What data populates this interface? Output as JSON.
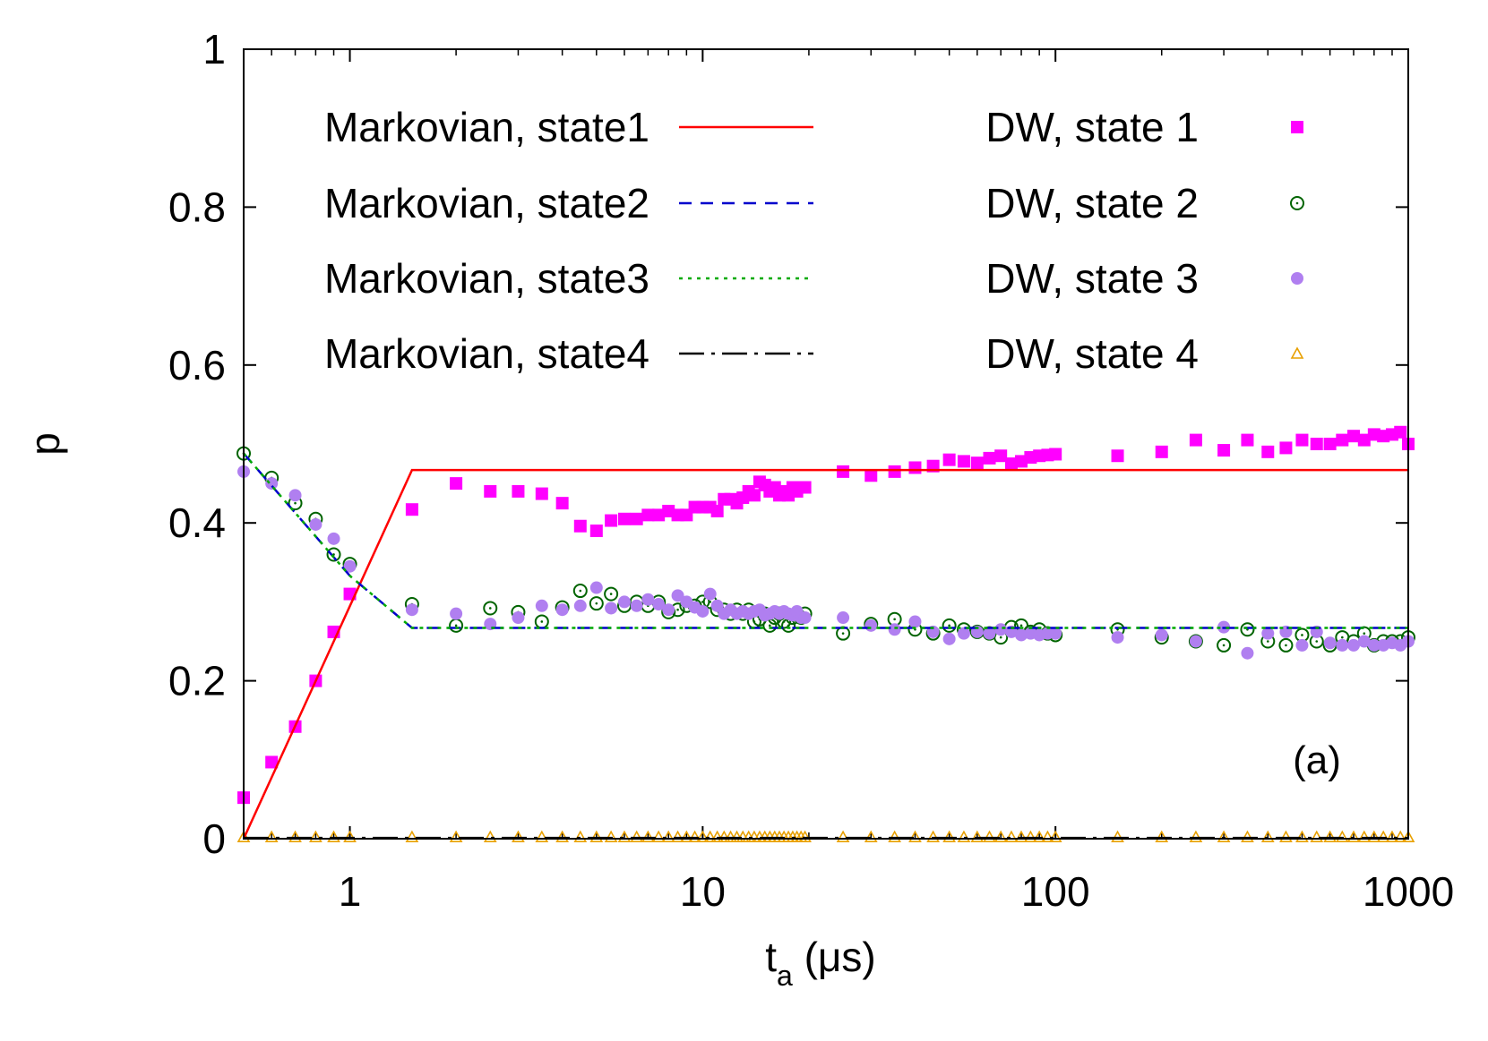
{
  "chart_data": {
    "type": "scatter",
    "title": "",
    "xlabel": "t",
    "xlabel_sub": "a",
    "xlabel_unit": " (μs)",
    "ylabel": "p",
    "xscale": "log",
    "xlim": [
      0.5,
      1000
    ],
    "ylim": [
      0,
      1
    ],
    "x_ticks": [
      1,
      10,
      100,
      1000
    ],
    "x_tick_labels": [
      "1",
      "10",
      "100",
      "1000"
    ],
    "y_ticks": [
      0,
      0.2,
      0.4,
      0.6,
      0.8,
      1
    ],
    "y_tick_labels": [
      "0",
      "0.2",
      "0.4",
      "0.6",
      "0.8",
      "1"
    ],
    "grid": false,
    "legend_position": "top",
    "annotation": "(a)",
    "series": [
      {
        "name": "Markovian, state1",
        "kind": "line",
        "color": "#ff0000",
        "dash": "solid",
        "x": [
          0.5,
          1.5,
          1000
        ],
        "y": [
          0.0,
          0.467,
          0.467
        ]
      },
      {
        "name": "Markovian, state2",
        "kind": "line",
        "color": "#0000cc",
        "dash": "dashed",
        "x": [
          0.5,
          1.0,
          1.5,
          1000
        ],
        "y": [
          0.488,
          0.333,
          0.267,
          0.267
        ]
      },
      {
        "name": "Markovian, state3",
        "kind": "line",
        "color": "#00aa00",
        "dash": "dotted",
        "x": [
          0.5,
          1.0,
          1.5,
          1000
        ],
        "y": [
          0.488,
          0.333,
          0.267,
          0.267
        ]
      },
      {
        "name": "Markovian, state4",
        "kind": "line",
        "color": "#000000",
        "dash": "dashdot",
        "x": [
          0.5,
          1000
        ],
        "y": [
          0.001,
          0.001
        ]
      },
      {
        "name": "DW, state 1",
        "kind": "marker",
        "marker": "square",
        "color": "#ff00ff",
        "x": [
          0.5,
          0.6,
          0.7,
          0.8,
          0.9,
          1.0,
          1.5,
          2,
          2.5,
          3,
          3.5,
          4,
          4.5,
          5,
          5.5,
          6,
          6.5,
          7,
          7.5,
          8,
          8.5,
          9,
          9.5,
          10,
          10.5,
          11,
          11.5,
          12,
          12.5,
          13,
          13.5,
          14,
          14.5,
          15,
          15.5,
          16,
          16.5,
          17,
          17.5,
          18,
          18.5,
          19,
          19.5,
          25,
          30,
          35,
          40,
          45,
          50,
          55,
          60,
          65,
          70,
          75,
          80,
          85,
          90,
          95,
          100,
          150,
          200,
          250,
          300,
          350,
          400,
          450,
          500,
          550,
          600,
          650,
          700,
          750,
          800,
          850,
          900,
          950,
          1000
        ],
        "y": [
          0.052,
          0.097,
          0.142,
          0.2,
          0.262,
          0.31,
          0.417,
          0.45,
          0.44,
          0.44,
          0.437,
          0.425,
          0.396,
          0.39,
          0.403,
          0.405,
          0.405,
          0.41,
          0.41,
          0.415,
          0.41,
          0.41,
          0.42,
          0.42,
          0.42,
          0.415,
          0.43,
          0.43,
          0.425,
          0.432,
          0.44,
          0.435,
          0.452,
          0.448,
          0.44,
          0.445,
          0.435,
          0.44,
          0.435,
          0.445,
          0.44,
          0.445,
          0.445,
          0.465,
          0.46,
          0.465,
          0.47,
          0.472,
          0.48,
          0.478,
          0.476,
          0.482,
          0.485,
          0.475,
          0.478,
          0.483,
          0.485,
          0.486,
          0.487,
          0.485,
          0.49,
          0.505,
          0.492,
          0.505,
          0.49,
          0.495,
          0.505,
          0.5,
          0.5,
          0.505,
          0.51,
          0.505,
          0.512,
          0.51,
          0.512,
          0.515,
          0.5
        ]
      },
      {
        "name": "DW, state 2",
        "kind": "marker",
        "marker": "circle-dot",
        "color": "#006400",
        "x": [
          0.5,
          0.6,
          0.7,
          0.8,
          0.9,
          1.0,
          1.5,
          2,
          2.5,
          3,
          3.5,
          4,
          4.5,
          5,
          5.5,
          6,
          6.5,
          7,
          7.5,
          8,
          8.5,
          9,
          9.5,
          10,
          10.5,
          11,
          11.5,
          12,
          12.5,
          13,
          13.5,
          14,
          14.5,
          15,
          15.5,
          16,
          16.5,
          17,
          17.5,
          18,
          18.5,
          19,
          19.5,
          25,
          30,
          35,
          40,
          45,
          50,
          55,
          60,
          65,
          70,
          75,
          80,
          85,
          90,
          95,
          100,
          150,
          200,
          250,
          300,
          350,
          400,
          450,
          500,
          550,
          600,
          650,
          700,
          750,
          800,
          850,
          900,
          950,
          1000
        ],
        "y": [
          0.488,
          0.457,
          0.425,
          0.405,
          0.36,
          0.348,
          0.297,
          0.27,
          0.292,
          0.287,
          0.275,
          0.293,
          0.314,
          0.298,
          0.31,
          0.295,
          0.3,
          0.295,
          0.3,
          0.287,
          0.29,
          0.295,
          0.295,
          0.3,
          0.3,
          0.29,
          0.29,
          0.285,
          0.29,
          0.285,
          0.29,
          0.275,
          0.278,
          0.285,
          0.27,
          0.28,
          0.285,
          0.275,
          0.27,
          0.28,
          0.285,
          0.28,
          0.285,
          0.26,
          0.272,
          0.278,
          0.265,
          0.26,
          0.27,
          0.265,
          0.262,
          0.26,
          0.255,
          0.268,
          0.27,
          0.262,
          0.265,
          0.26,
          0.258,
          0.265,
          0.255,
          0.25,
          0.245,
          0.265,
          0.25,
          0.245,
          0.258,
          0.25,
          0.245,
          0.255,
          0.25,
          0.26,
          0.245,
          0.25,
          0.25,
          0.25,
          0.255
        ]
      },
      {
        "name": "DW, state 3",
        "kind": "marker",
        "marker": "circle-filled",
        "color": "#b07ff0",
        "x": [
          0.5,
          0.6,
          0.7,
          0.8,
          0.9,
          1.0,
          1.5,
          2,
          2.5,
          3,
          3.5,
          4,
          4.5,
          5,
          5.5,
          6,
          6.5,
          7,
          7.5,
          8,
          8.5,
          9,
          9.5,
          10,
          10.5,
          11,
          11.5,
          12,
          12.5,
          13,
          13.5,
          14,
          14.5,
          15,
          15.5,
          16,
          16.5,
          17,
          17.5,
          18,
          18.5,
          19,
          19.5,
          25,
          30,
          35,
          40,
          45,
          50,
          55,
          60,
          65,
          70,
          75,
          80,
          85,
          90,
          95,
          100,
          150,
          200,
          250,
          300,
          350,
          400,
          450,
          500,
          550,
          600,
          650,
          700,
          750,
          800,
          850,
          900,
          950,
          1000
        ],
        "y": [
          0.465,
          0.45,
          0.435,
          0.398,
          0.38,
          0.345,
          0.29,
          0.285,
          0.272,
          0.28,
          0.295,
          0.29,
          0.295,
          0.318,
          0.292,
          0.3,
          0.295,
          0.303,
          0.297,
          0.29,
          0.308,
          0.3,
          0.293,
          0.288,
          0.31,
          0.295,
          0.285,
          0.29,
          0.285,
          0.288,
          0.285,
          0.288,
          0.29,
          0.283,
          0.285,
          0.288,
          0.285,
          0.288,
          0.285,
          0.283,
          0.288,
          0.28,
          0.28,
          0.28,
          0.27,
          0.265,
          0.275,
          0.262,
          0.253,
          0.26,
          0.262,
          0.26,
          0.265,
          0.262,
          0.258,
          0.26,
          0.258,
          0.26,
          0.26,
          0.255,
          0.258,
          0.25,
          0.268,
          0.235,
          0.26,
          0.262,
          0.245,
          0.262,
          0.248,
          0.245,
          0.245,
          0.25,
          0.245,
          0.245,
          0.248,
          0.245,
          0.25
        ]
      },
      {
        "name": "DW, state 4",
        "kind": "marker",
        "marker": "triangle",
        "color": "#e8a000",
        "x": [
          0.5,
          0.6,
          0.7,
          0.8,
          0.9,
          1.0,
          1.5,
          2,
          2.5,
          3,
          3.5,
          4,
          4.5,
          5,
          5.5,
          6,
          6.5,
          7,
          7.5,
          8,
          8.5,
          9,
          9.5,
          10,
          10.5,
          11,
          11.5,
          12,
          12.5,
          13,
          13.5,
          14,
          14.5,
          15,
          15.5,
          16,
          16.5,
          17,
          17.5,
          18,
          18.5,
          19,
          19.5,
          25,
          30,
          35,
          40,
          45,
          50,
          55,
          60,
          65,
          70,
          75,
          80,
          85,
          90,
          95,
          100,
          150,
          200,
          250,
          300,
          350,
          400,
          450,
          500,
          550,
          600,
          650,
          700,
          750,
          800,
          850,
          900,
          950,
          1000
        ],
        "y": [
          0.002,
          0.002,
          0.002,
          0.002,
          0.002,
          0.002,
          0.002,
          0.002,
          0.002,
          0.002,
          0.002,
          0.002,
          0.002,
          0.002,
          0.002,
          0.002,
          0.002,
          0.002,
          0.002,
          0.002,
          0.002,
          0.002,
          0.002,
          0.002,
          0.002,
          0.002,
          0.002,
          0.002,
          0.002,
          0.002,
          0.002,
          0.002,
          0.002,
          0.002,
          0.002,
          0.002,
          0.002,
          0.002,
          0.002,
          0.002,
          0.002,
          0.002,
          0.002,
          0.002,
          0.002,
          0.002,
          0.002,
          0.002,
          0.002,
          0.002,
          0.002,
          0.002,
          0.002,
          0.002,
          0.002,
          0.002,
          0.002,
          0.002,
          0.002,
          0.002,
          0.002,
          0.002,
          0.002,
          0.002,
          0.002,
          0.002,
          0.002,
          0.002,
          0.002,
          0.002,
          0.002,
          0.002,
          0.002,
          0.002,
          0.002,
          0.002,
          0.002
        ]
      }
    ]
  }
}
